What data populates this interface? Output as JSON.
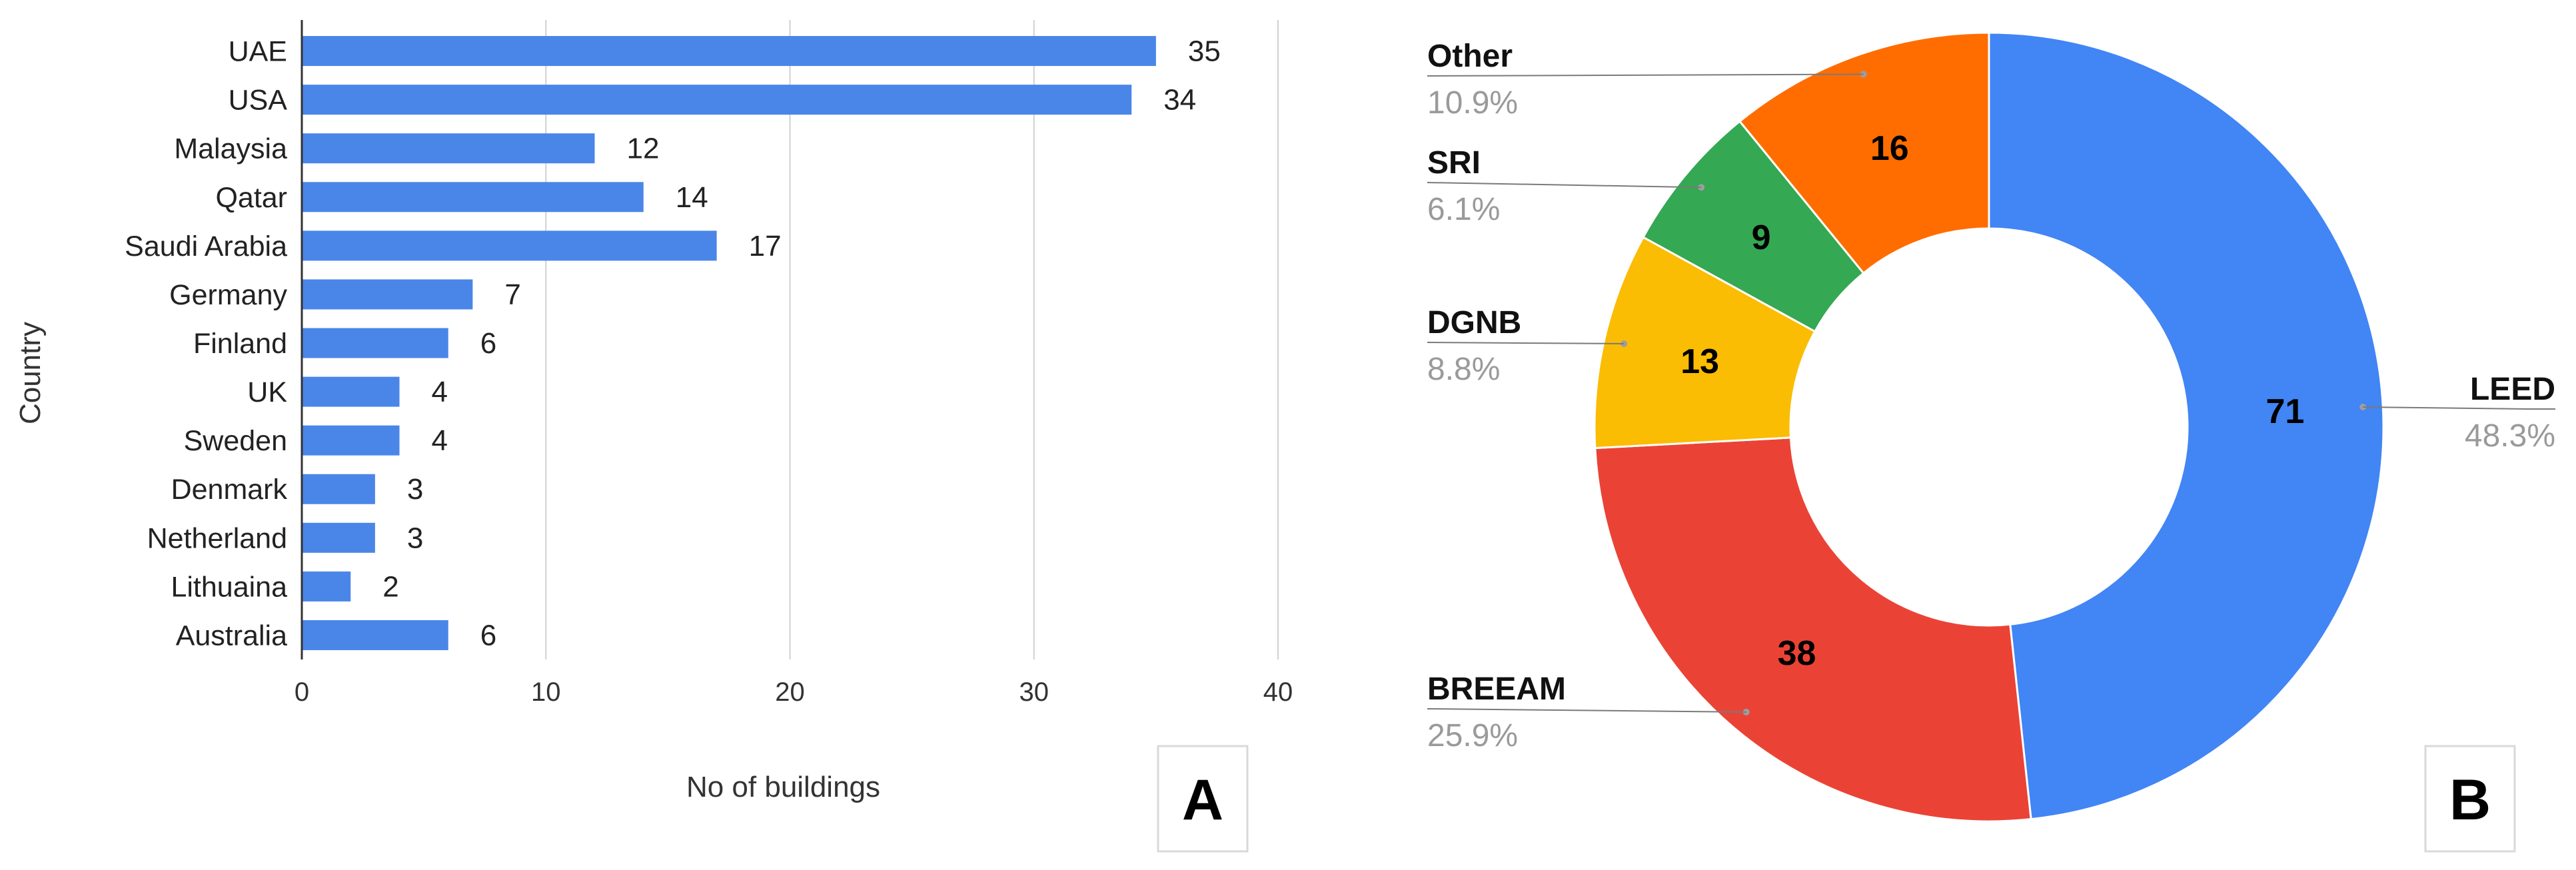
{
  "chart_data": [
    {
      "type": "bar",
      "orientation": "horizontal",
      "panel_label": "A",
      "xlabel": "No of buildings",
      "ylabel": "Country",
      "xlim": [
        0,
        40
      ],
      "xticks": [
        0,
        10,
        20,
        30,
        40
      ],
      "grid": true,
      "color": "#4a86e8",
      "categories": [
        "UAE",
        "USA",
        "Malaysia",
        "Qatar",
        "Saudi Arabia",
        "Germany",
        "Finland",
        "UK",
        "Sweden",
        "Denmark",
        "Netherland",
        "Lithuaina",
        "Australia"
      ],
      "values": [
        35,
        34,
        12,
        14,
        17,
        7,
        6,
        4,
        4,
        3,
        3,
        2,
        6
      ]
    },
    {
      "type": "pie",
      "style": "donut",
      "panel_label": "B",
      "slices": [
        {
          "label": "LEED",
          "value": 71,
          "percent": "48.3%",
          "color": "#4285f4"
        },
        {
          "label": "BREEAM",
          "value": 38,
          "percent": "25.9%",
          "color": "#ea4335"
        },
        {
          "label": "DGNB",
          "value": 13,
          "percent": "8.8%",
          "color": "#fbbc04"
        },
        {
          "label": "SRI",
          "value": 9,
          "percent": "6.1%",
          "color": "#34a853"
        },
        {
          "label": "Other",
          "value": 16,
          "percent": "10.9%",
          "color": "#ff6d01"
        }
      ]
    }
  ]
}
